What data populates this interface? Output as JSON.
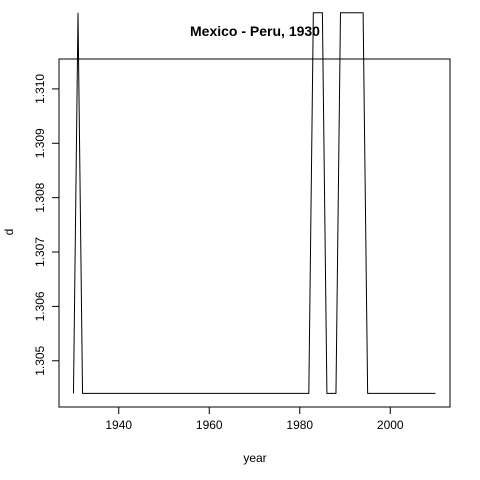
{
  "chart_data": {
    "type": "line",
    "title": "Mexico - Peru, 1930",
    "xlabel": "year",
    "ylabel": "d",
    "xlim": [
      1926.8,
      2013.2
    ],
    "ylim": [
      1.30415,
      1.31055
    ],
    "x_ticks": [
      1940,
      1960,
      1980,
      2000
    ],
    "x_tick_labels": [
      "1940",
      "1960",
      "1980",
      "2000"
    ],
    "y_ticks": [
      1.305,
      1.306,
      1.307,
      1.308,
      1.309,
      1.31
    ],
    "y_tick_labels": [
      "1.305",
      "1.306",
      "1.307",
      "1.308",
      "1.309",
      "1.310"
    ],
    "grid": false,
    "series": [
      {
        "color": "#000000",
        "x": [
          1930,
          1931,
          1932,
          1982,
          1983,
          1985,
          1986,
          1988,
          1989,
          1994,
          1995,
          2010
        ],
        "y": [
          1.3044,
          1.3114,
          1.3044,
          1.3044,
          1.3114,
          1.3114,
          1.3044,
          1.3044,
          1.3114,
          1.3114,
          1.3044,
          1.3044
        ]
      }
    ]
  }
}
